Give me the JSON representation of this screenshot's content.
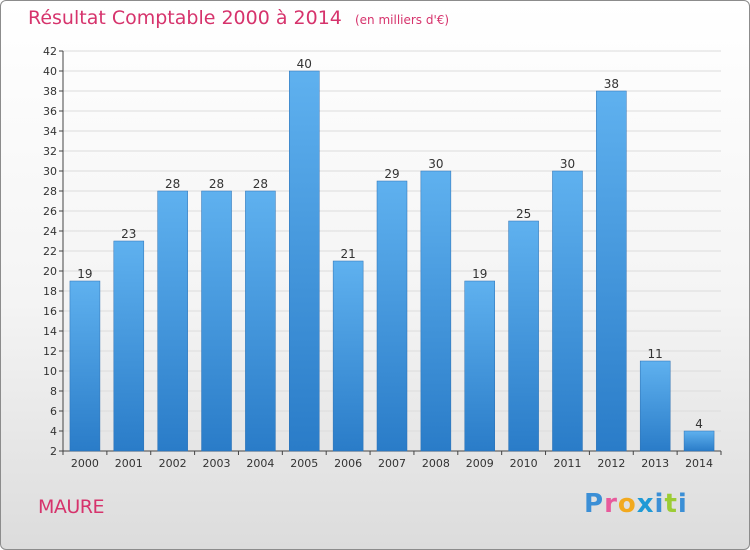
{
  "chart_data": {
    "type": "bar",
    "title": "Résultat Comptable 2000 à 2014",
    "subtitle": "(en milliers d'€)",
    "categories": [
      "2000",
      "2001",
      "2002",
      "2003",
      "2004",
      "2005",
      "2006",
      "2007",
      "2008",
      "2009",
      "2010",
      "2011",
      "2012",
      "2013",
      "2014"
    ],
    "values": [
      19,
      23,
      28,
      28,
      28,
      40,
      21,
      29,
      30,
      19,
      25,
      30,
      38,
      11,
      4
    ],
    "xlabel": "",
    "ylabel": "",
    "ylim": [
      2,
      42
    ],
    "yticks": [
      2,
      4,
      6,
      8,
      10,
      12,
      14,
      16,
      18,
      20,
      22,
      24,
      26,
      28,
      30,
      32,
      34,
      36,
      38,
      40,
      42
    ],
    "grid": true,
    "bar_color": "#3d95de"
  },
  "location": "MAURE",
  "logo": {
    "letters": [
      "P",
      "r",
      "o",
      "x",
      "i",
      "t",
      "i"
    ],
    "text": "Proxiti"
  }
}
